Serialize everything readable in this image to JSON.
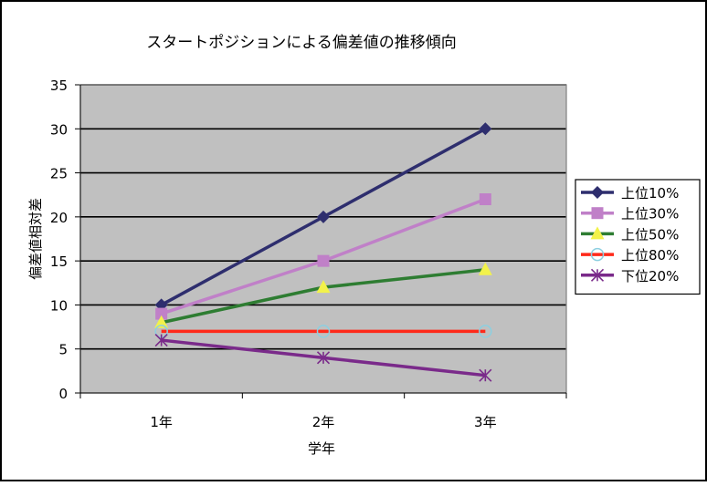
{
  "chart_data": {
    "type": "line",
    "title": "スタートポジションによる偏差値の推移傾向",
    "xlabel": "学年",
    "ylabel": "偏差値相対差",
    "categories": [
      "1年",
      "2年",
      "3年"
    ],
    "ylim": [
      0,
      35
    ],
    "yticks": [
      0,
      5,
      10,
      15,
      20,
      25,
      30,
      35
    ],
    "grid": true,
    "legend_position": "right",
    "plot_background": "#c0c0c0",
    "series": [
      {
        "name": "上位10%",
        "values": [
          10,
          20,
          30
        ],
        "color": "#2e2e6e",
        "marker": "diamond"
      },
      {
        "name": "上位30%",
        "values": [
          9,
          15,
          22
        ],
        "color": "#c080c8",
        "marker": "square"
      },
      {
        "name": "上位50%",
        "values": [
          8,
          12,
          14
        ],
        "color": "#2e7d32",
        "marker": "triangle"
      },
      {
        "name": "上位80%",
        "values": [
          7,
          7,
          7
        ],
        "color": "#ff2a1a",
        "marker": "circle"
      },
      {
        "name": "下位20%",
        "values": [
          6,
          4,
          2
        ],
        "color": "#7a2a8a",
        "marker": "asterisk"
      }
    ]
  }
}
